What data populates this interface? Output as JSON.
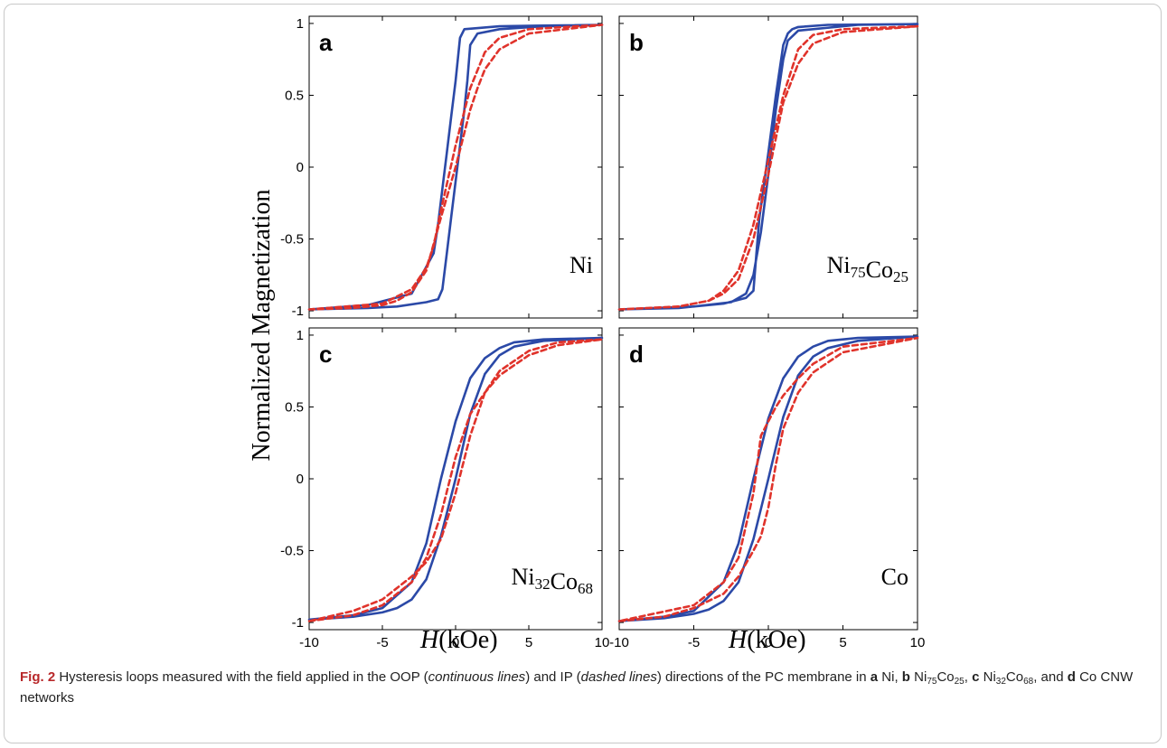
{
  "figure": {
    "ylabel": "Normalized Magnetization",
    "xlabel_italic": "H",
    "xlabel_unit": "(kOe)",
    "colors": {
      "oop": "#2b49a7",
      "ip": "#e0332b",
      "axis": "#000000"
    }
  },
  "chart_data": [
    {
      "panel": "a",
      "type": "line",
      "material_label": "Ni",
      "material_parts": [
        {
          "t": "Ni"
        }
      ],
      "xlim": [
        -10,
        10
      ],
      "ylim": [
        -1.05,
        1.05
      ],
      "xticks": [],
      "yticks": [
        -1,
        -0.5,
        0,
        0.5,
        1
      ],
      "series": [
        {
          "style": "continuous",
          "x": [
            -10,
            -8,
            -6,
            -4,
            -2,
            -1.2,
            -0.9,
            -0.6,
            -0.3,
            0,
            0.3,
            0.6,
            0.8,
            1.0,
            1.5,
            3,
            6,
            10,
            6,
            3,
            0.6,
            0.3,
            0,
            -0.3,
            -0.6,
            -0.9,
            -1.2,
            -1.5,
            -3,
            -6,
            -10
          ],
          "y": [
            -0.99,
            -0.985,
            -0.98,
            -0.97,
            -0.94,
            -0.92,
            -0.85,
            -0.6,
            -0.35,
            -0.1,
            0.15,
            0.4,
            0.6,
            0.85,
            0.93,
            0.96,
            0.98,
            0.99,
            0.985,
            0.98,
            0.96,
            0.9,
            0.6,
            0.35,
            0.1,
            -0.15,
            -0.4,
            -0.6,
            -0.88,
            -0.96,
            -0.99
          ]
        },
        {
          "style": "dashed",
          "x": [
            -10,
            -7,
            -5,
            -4,
            -3,
            -2,
            -1,
            0,
            1,
            1.5,
            2,
            3,
            5,
            10,
            5,
            3,
            2,
            1,
            0,
            -1,
            -1.5,
            -2,
            -3,
            -5,
            -10
          ],
          "y": [
            -0.99,
            -0.98,
            -0.96,
            -0.93,
            -0.87,
            -0.72,
            -0.35,
            0.0,
            0.4,
            0.55,
            0.68,
            0.82,
            0.93,
            0.99,
            0.96,
            0.9,
            0.8,
            0.55,
            0.15,
            -0.3,
            -0.55,
            -0.7,
            -0.85,
            -0.95,
            -0.99
          ]
        }
      ]
    },
    {
      "panel": "b",
      "type": "line",
      "material_label": "Ni75Co25",
      "material_parts": [
        {
          "t": "Ni"
        },
        {
          "t": "75",
          "sub": true
        },
        {
          "t": "Co"
        },
        {
          "t": "25",
          "sub": true
        }
      ],
      "xlim": [
        -10,
        10
      ],
      "ylim": [
        -1.05,
        1.05
      ],
      "xticks": [],
      "yticks": [],
      "series": [
        {
          "style": "continuous",
          "x": [
            -10,
            -6,
            -3,
            -1.5,
            -1.0,
            -0.8,
            -0.6,
            0,
            0.5,
            1.0,
            1.3,
            1.6,
            2,
            4,
            10,
            6,
            2,
            1.3,
            1.0,
            0.5,
            0,
            -0.5,
            -1,
            -1.5,
            -2.5,
            -5,
            -10
          ],
          "y": [
            -0.99,
            -0.98,
            -0.95,
            -0.91,
            -0.86,
            -0.6,
            -0.35,
            0.1,
            0.5,
            0.85,
            0.93,
            0.96,
            0.975,
            0.99,
            0.995,
            0.99,
            0.95,
            0.88,
            0.75,
            0.4,
            -0.05,
            -0.45,
            -0.75,
            -0.88,
            -0.94,
            -0.97,
            -0.99
          ]
        },
        {
          "style": "dashed",
          "x": [
            -10,
            -6,
            -4,
            -3,
            -2,
            -1,
            0,
            1,
            2,
            3,
            5,
            10,
            5,
            3,
            2,
            1,
            0,
            -1,
            -2,
            -3,
            -4,
            -6,
            -10
          ],
          "y": [
            -0.99,
            -0.97,
            -0.93,
            -0.88,
            -0.78,
            -0.5,
            -0.05,
            0.45,
            0.72,
            0.86,
            0.94,
            0.98,
            0.96,
            0.92,
            0.82,
            0.5,
            0.05,
            -0.4,
            -0.72,
            -0.86,
            -0.93,
            -0.97,
            -0.99
          ]
        }
      ]
    },
    {
      "panel": "c",
      "type": "line",
      "material_label": "Ni32Co68",
      "material_parts": [
        {
          "t": "Ni"
        },
        {
          "t": "32",
          "sub": true
        },
        {
          "t": "Co"
        },
        {
          "t": "68",
          "sub": true
        }
      ],
      "xlim": [
        -10,
        10
      ],
      "ylim": [
        -1.05,
        1.05
      ],
      "xticks": [
        -10,
        -5,
        0,
        5,
        10
      ],
      "yticks": [
        -1,
        -0.5,
        0,
        0.5,
        1
      ],
      "series": [
        {
          "style": "continuous",
          "x": [
            -10,
            -7,
            -5,
            -4,
            -3,
            -2,
            -1,
            0,
            1,
            2,
            3,
            4,
            6,
            10,
            6,
            4,
            3,
            2,
            1,
            0,
            -1,
            -2,
            -3,
            -5,
            -7,
            -10
          ],
          "y": [
            -0.98,
            -0.96,
            -0.93,
            -0.9,
            -0.84,
            -0.7,
            -0.4,
            0.0,
            0.45,
            0.73,
            0.86,
            0.92,
            0.96,
            0.98,
            0.97,
            0.95,
            0.91,
            0.84,
            0.7,
            0.4,
            0.0,
            -0.45,
            -0.72,
            -0.9,
            -0.95,
            -0.98
          ]
        },
        {
          "style": "dashed",
          "x": [
            -10,
            -7,
            -5,
            -3,
            -2,
            -1,
            0,
            1,
            2,
            3,
            5,
            7,
            10,
            7,
            5,
            3,
            2,
            1,
            0,
            -1,
            -2,
            -3,
            -5,
            -7,
            -10
          ],
          "y": [
            -0.99,
            -0.95,
            -0.88,
            -0.72,
            -0.55,
            -0.25,
            0.15,
            0.45,
            0.6,
            0.72,
            0.86,
            0.93,
            0.97,
            0.95,
            0.89,
            0.75,
            0.6,
            0.3,
            -0.1,
            -0.42,
            -0.58,
            -0.68,
            -0.84,
            -0.92,
            -0.99
          ]
        }
      ]
    },
    {
      "panel": "d",
      "type": "line",
      "material_label": "Co",
      "material_parts": [
        {
          "t": "Co"
        }
      ],
      "xlim": [
        -10,
        10
      ],
      "ylim": [
        -1.05,
        1.05
      ],
      "xticks": [
        -10,
        -5,
        0,
        5,
        10
      ],
      "yticks": [],
      "series": [
        {
          "style": "continuous",
          "x": [
            -10,
            -7,
            -5,
            -4,
            -3,
            -2,
            -1,
            0,
            1,
            2,
            3,
            4,
            6,
            10,
            6,
            4,
            3,
            2,
            1,
            0,
            -1,
            -2,
            -3,
            -5,
            -7,
            -10
          ],
          "y": [
            -0.99,
            -0.97,
            -0.94,
            -0.91,
            -0.85,
            -0.72,
            -0.42,
            0.0,
            0.43,
            0.72,
            0.85,
            0.91,
            0.96,
            0.99,
            0.98,
            0.96,
            0.92,
            0.85,
            0.7,
            0.42,
            0.0,
            -0.45,
            -0.72,
            -0.92,
            -0.96,
            -0.99
          ]
        },
        {
          "style": "dashed",
          "x": [
            -10,
            -7,
            -5,
            -3,
            -2,
            -1,
            -0.5,
            0,
            0.5,
            1,
            2,
            3,
            5,
            10,
            5,
            3,
            2,
            1,
            0.5,
            0,
            -0.5,
            -1,
            -2,
            -3,
            -5,
            -10
          ],
          "y": [
            -0.99,
            -0.96,
            -0.9,
            -0.8,
            -0.68,
            -0.5,
            -0.4,
            -0.2,
            0.1,
            0.35,
            0.6,
            0.74,
            0.88,
            0.98,
            0.92,
            0.8,
            0.7,
            0.58,
            0.5,
            0.4,
            0.3,
            -0.1,
            -0.55,
            -0.72,
            -0.88,
            -0.99
          ]
        }
      ]
    }
  ],
  "caption": {
    "fig_label": "Fig. 2",
    "text_1": " Hysteresis loops measured with the field applied in the OOP (",
    "italic_1": "continuous lines",
    "text_2": ") and IP (",
    "italic_2": "dashed lines",
    "text_3": ") directions of the PC membrane in ",
    "a": "a",
    "a_mat": " Ni, ",
    "b": "b",
    "b_1": " Ni",
    "b_s1": "75",
    "b_2": "Co",
    "b_s2": "25",
    "b_3": ", ",
    "c": "c",
    "c_1": " Ni",
    "c_s1": "32",
    "c_2": "Co",
    "c_s2": "68",
    "c_3": ", and ",
    "d": "d",
    "d_1": " Co CNW networks"
  }
}
